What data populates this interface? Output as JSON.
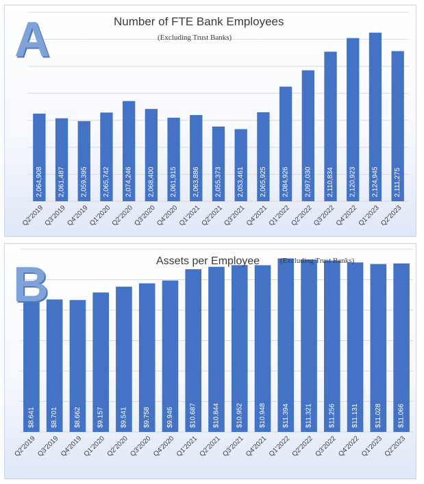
{
  "chart_data": [
    {
      "type": "bar",
      "panel_label": "A",
      "title": "Number of FTE Bank Employees",
      "subtitle": "(Excluding Trust Banks)",
      "categories": [
        "Q2'2019",
        "Q3'2019",
        "Q4'2019",
        "Q1'2020",
        "Q2'2020",
        "Q3'2020",
        "Q4'2020",
        "Q1'2021",
        "Q2'2021",
        "Q3'2021",
        "Q4'2021",
        "Q1'2022",
        "Q2'2022",
        "Q3'2022",
        "Q4'2022",
        "Q1'2023",
        "Q2'2023"
      ],
      "values": [
        2064908,
        2061487,
        2059395,
        2065742,
        2074246,
        2068400,
        2061915,
        2063886,
        2055373,
        2053461,
        2065925,
        2084926,
        2097030,
        2110834,
        2120923,
        2124945,
        2111275
      ],
      "labels": [
        "2,064,908",
        "2,061,487",
        "2,059,395",
        "2,065,742",
        "2,074,246",
        "2,068,400",
        "2,061,915",
        "2,063,886",
        "2,055,373",
        "2,053,461",
        "2,065,925",
        "2,084,926",
        "2,097,030",
        "2,110,834",
        "2,120,923",
        "2,124,945",
        "2,111,275"
      ],
      "ylim": [
        2000000,
        2140000
      ],
      "grid": true,
      "bar_color": "#4472c4"
    },
    {
      "type": "bar",
      "panel_label": "B",
      "title": "Assets per Employee",
      "subtitle": "(Excluding Trust Banks)",
      "categories": [
        "Q2'2019",
        "Q3'2019",
        "Q4'2019",
        "Q1'2020",
        "Q2'2020",
        "Q3'2020",
        "Q4'2020",
        "Q1'2021",
        "Q2'2021",
        "Q3'2021",
        "Q4'2021",
        "Q1'2022",
        "Q2'2022",
        "Q3'2022",
        "Q4'2022",
        "Q1'2023",
        "Q2'2023"
      ],
      "values": [
        8.641,
        8.701,
        8.662,
        9.157,
        9.541,
        9.758,
        9.946,
        10.687,
        10.844,
        10.952,
        10.948,
        11.394,
        11.321,
        11.256,
        11.131,
        11.028,
        11.066
      ],
      "labels": [
        "$8.641",
        "$8.701",
        "$8.662",
        "$9.157",
        "$9.541",
        "$9.758",
        "$9.946",
        "$10.687",
        "$10.844",
        "$10.952",
        "$10.948",
        "$11.394",
        "$11.321",
        "$11.256",
        "$11.131",
        "$11.028",
        "$11.066"
      ],
      "ylim": [
        0,
        12
      ],
      "grid": true,
      "bar_color": "#4472c4"
    }
  ]
}
